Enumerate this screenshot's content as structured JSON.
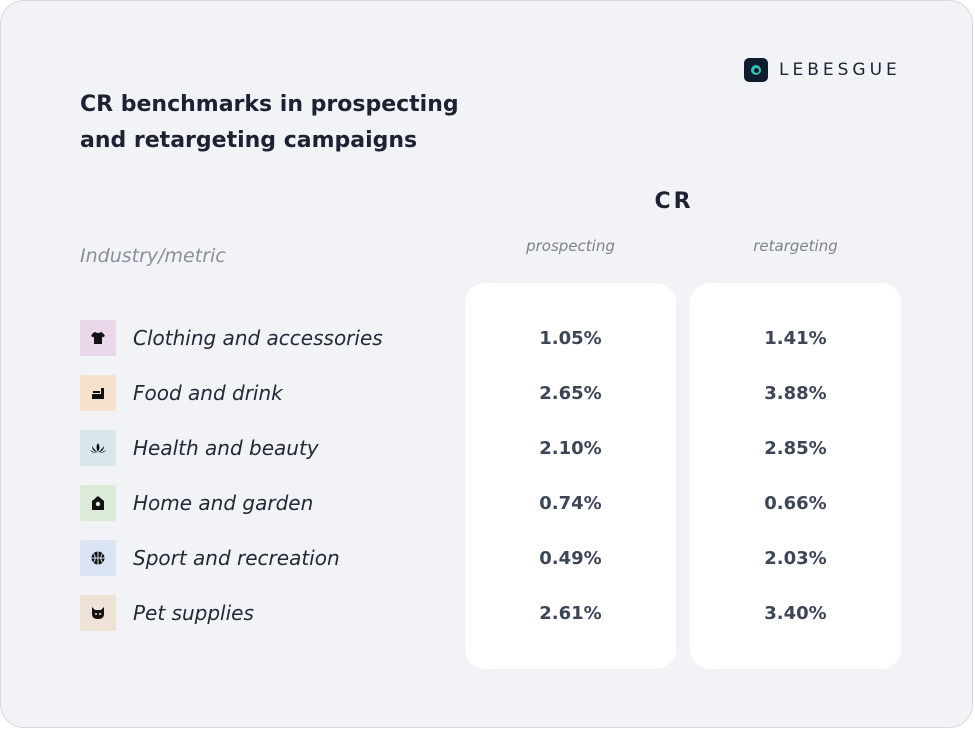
{
  "brand": {
    "name": "LEBESGUE"
  },
  "title": "CR benchmarks in prospecting and retargeting campaigns",
  "metric_header": "CR",
  "column_headers": {
    "prospecting": "prospecting",
    "retargeting": "retargeting"
  },
  "row_header": "Industry/metric",
  "rows": [
    {
      "label": "Clothing and accessories",
      "icon": "tshirt-icon",
      "icon_bg": "#ead8ea",
      "prospecting": "1.05%",
      "retargeting": "1.41%"
    },
    {
      "label": "Food and drink",
      "icon": "food-icon",
      "icon_bg": "#f6e1cc",
      "prospecting": "2.65%",
      "retargeting": "3.88%"
    },
    {
      "label": "Health and beauty",
      "icon": "lotus-icon",
      "icon_bg": "#d8e7ea",
      "prospecting": "2.10%",
      "retargeting": "2.85%"
    },
    {
      "label": "Home and garden",
      "icon": "house-icon",
      "icon_bg": "#dcebd8",
      "prospecting": "0.74%",
      "retargeting": "0.66%"
    },
    {
      "label": "Sport and recreation",
      "icon": "ball-icon",
      "icon_bg": "#dae4f5",
      "prospecting": "0.49%",
      "retargeting": "2.03%"
    },
    {
      "label": "Pet supplies",
      "icon": "pet-icon",
      "icon_bg": "#efe3d7",
      "prospecting": "2.61%",
      "retargeting": "3.40%"
    }
  ],
  "colors": {
    "background": "#f2f3f7",
    "card": "#ffffff",
    "text_dark": "#1b2233",
    "value_text": "#3c4657",
    "muted": "#8a8f9a",
    "logo_accent": "#2ec4b6"
  }
}
